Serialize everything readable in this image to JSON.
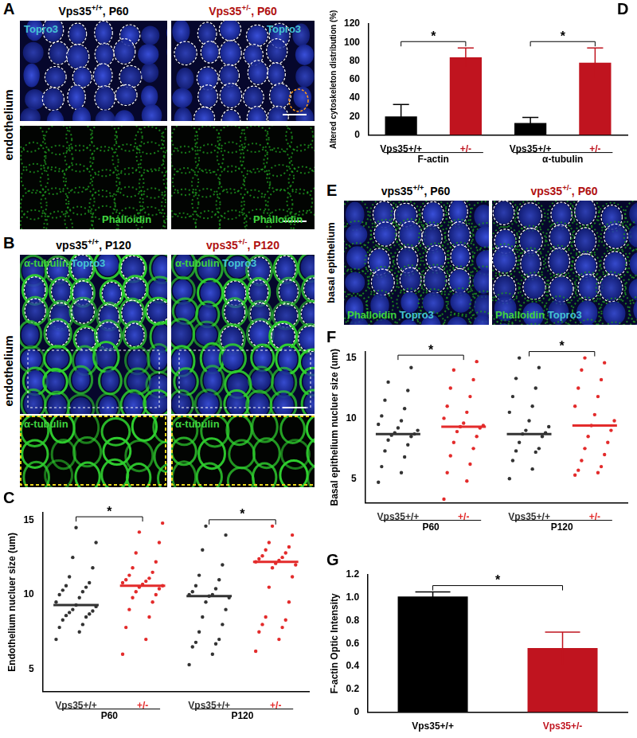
{
  "panels": [
    {
      "label": "A",
      "side_label": "endothelium",
      "columns": [
        {
          "text": "Vps35",
          "sup": "+/+",
          "rest": ", P60"
        },
        {
          "text": "Vps35",
          "sup": "+/-",
          "rest": ", P60"
        }
      ],
      "channels": [
        "Topro3",
        "Phalloidin"
      ]
    },
    {
      "label": "B",
      "side_label": "endothelium",
      "columns": [
        {
          "text": "vps35",
          "sup": "+/+",
          "rest": ", P120"
        },
        {
          "text": "vps35",
          "sup": "+/-",
          "rest": ", P120"
        }
      ],
      "channels": [
        "α-tubulin",
        "Topro3"
      ],
      "inset_channel": "α-tubulin"
    },
    {
      "label": "E",
      "side_label": "basal epithelium",
      "columns": [
        {
          "text": "vps35",
          "sup": "+/+",
          "rest": ", P60"
        },
        {
          "text": "vps35",
          "sup": "+/-",
          "rest": ", P60"
        }
      ],
      "channels": [
        "Phalloidin",
        "Topro3"
      ]
    }
  ],
  "chart_data": [
    {
      "panel": "C",
      "type": "strip",
      "y_label": "Endothelium nucluer size (um)",
      "categories": [
        "Vps35+/+",
        "+/-",
        "Vps35+/+",
        "+/-"
      ],
      "groups": [
        "P60",
        "P120"
      ],
      "colors": [
        "#333333",
        "#e32b2b",
        "#333333",
        "#e32b2b"
      ],
      "values": [
        [
          7.0,
          7.5,
          7.8,
          8.0,
          8.3,
          8.5,
          8.6,
          8.7,
          8.8,
          8.9,
          9.0,
          9.2,
          9.3,
          9.5,
          9.8,
          10.0,
          10.2,
          10.3,
          10.5,
          10.6,
          10.8,
          11.2,
          11.8,
          12.5,
          13.5,
          14.5
        ],
        [
          6.0,
          7.0,
          7.8,
          8.5,
          9.0,
          9.5,
          9.8,
          10.0,
          10.2,
          10.4,
          10.5,
          10.6,
          10.7,
          10.8,
          10.9,
          11.0,
          11.1,
          11.3,
          11.5,
          11.8,
          12.2,
          12.8,
          13.5,
          14.2,
          14.8
        ],
        [
          5.3,
          6.0,
          6.5,
          6.7,
          6.8,
          7.0,
          7.5,
          8.0,
          8.5,
          9.0,
          9.5,
          9.8,
          9.9,
          10.0,
          10.0,
          10.2,
          10.4,
          10.6,
          11.0,
          11.3,
          12.0,
          13.0,
          14.0,
          14.6
        ],
        [
          6.2,
          7.0,
          7.5,
          7.8,
          8.0,
          8.3,
          8.5,
          9.5,
          10.5,
          11.2,
          11.8,
          12.0,
          12.1,
          12.2,
          12.3,
          12.4,
          12.5,
          12.6,
          12.8,
          13.0,
          13.2,
          13.5,
          14.0,
          14.6
        ]
      ],
      "means": [
        9.3,
        10.6,
        9.9,
        12.2
      ],
      "ylim": [
        3.5,
        15.5
      ],
      "yticks": [
        5,
        10,
        15
      ],
      "grid": false,
      "significance": [
        {
          "pair": [
            0,
            1
          ],
          "label": "*"
        },
        {
          "pair": [
            2,
            3
          ],
          "label": "*"
        }
      ]
    },
    {
      "panel": "D",
      "type": "bar",
      "y_label": "Altered cytoskeleton distribution (%)",
      "categories": [
        "Vps35+/+",
        "+/-",
        "Vps35+/+",
        "+/-"
      ],
      "groups": [
        "F-actin",
        "α-tubulin"
      ],
      "colors": [
        "#000000",
        "#c0141f",
        "#000000",
        "#c0141f"
      ],
      "values": [
        20,
        84,
        13,
        78
      ],
      "errors": [
        13,
        10,
        6,
        16
      ],
      "ylim": [
        0,
        120
      ],
      "yticks": [
        0,
        20,
        40,
        60,
        80,
        100,
        120
      ],
      "grid": false,
      "significance": [
        {
          "pair": [
            0,
            1
          ],
          "label": "*"
        },
        {
          "pair": [
            2,
            3
          ],
          "label": "*"
        }
      ]
    },
    {
      "panel": "F",
      "type": "strip",
      "y_label": "Basal epithelium nucluer size (um)",
      "categories": [
        "Vps35+/+",
        "+/-",
        "Vps35+/+",
        "+/-"
      ],
      "groups": [
        "P60",
        "P120"
      ],
      "colors": [
        "#333333",
        "#e32b2b",
        "#333333",
        "#e32b2b"
      ],
      "values": [
        [
          4.7,
          5.5,
          6.0,
          6.8,
          7.3,
          7.8,
          8.2,
          8.5,
          8.6,
          8.7,
          8.8,
          9.0,
          9.2,
          9.5,
          9.8,
          10.2,
          10.8,
          11.5,
          12.3,
          13.0,
          14.2
        ],
        [
          3.3,
          4.8,
          5.5,
          6.2,
          6.9,
          7.5,
          8.0,
          8.5,
          8.9,
          9.2,
          9.3,
          9.4,
          9.6,
          10.0,
          10.5,
          11.0,
          11.8,
          12.5,
          13.2,
          14.0,
          14.7
        ],
        [
          5.0,
          5.8,
          6.5,
          7.2,
          7.3,
          7.5,
          8.0,
          8.5,
          8.7,
          8.8,
          9.0,
          9.3,
          9.8,
          10.5,
          11.0,
          11.8,
          12.5,
          13.3,
          14.2,
          15.0
        ],
        [
          5.3,
          5.5,
          5.7,
          6.0,
          6.5,
          7.0,
          7.5,
          8.0,
          8.5,
          9.0,
          9.4,
          9.8,
          10.3,
          11.0,
          11.8,
          12.5,
          13.2,
          14.0,
          14.6,
          15.0
        ]
      ],
      "means": [
        8.7,
        9.3,
        8.7,
        9.4
      ],
      "ylim": [
        3,
        15.5
      ],
      "yticks": [
        5,
        10,
        15
      ],
      "grid": false,
      "significance": [
        {
          "pair": [
            0,
            1
          ],
          "label": "*"
        },
        {
          "pair": [
            2,
            3
          ],
          "label": "*"
        }
      ]
    },
    {
      "panel": "G",
      "type": "bar",
      "y_label": "F-actin Optic Intensity",
      "categories": [
        "Vps35+/+",
        "Vps35+/-"
      ],
      "colors": [
        "#000000",
        "#c0141f"
      ],
      "values": [
        1.01,
        0.56
      ],
      "errors": [
        0.04,
        0.14
      ],
      "ylim": [
        0,
        1.2
      ],
      "yticks": [
        0,
        0.2,
        0.4,
        0.6,
        0.8,
        {
          "value": 1,
          "label": "1.0"
        },
        1.2
      ],
      "grid": false,
      "significance": [
        {
          "pair": [
            0,
            1
          ],
          "label": "*"
        }
      ]
    }
  ]
}
